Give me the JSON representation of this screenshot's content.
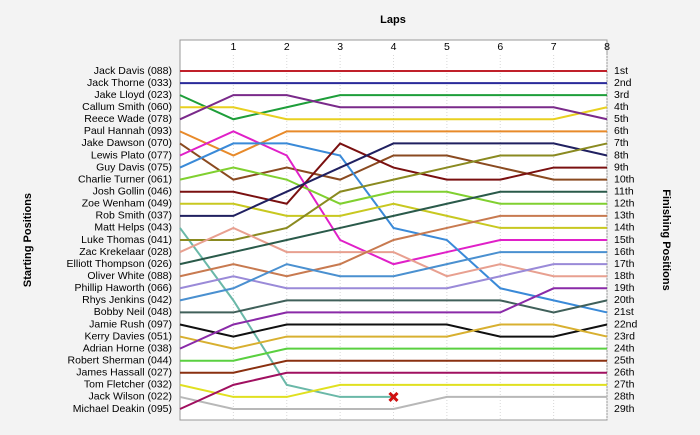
{
  "chart_data": {
    "type": "lap",
    "title": "Laps",
    "y_label": "Starting Positions",
    "y2_label": "Finishing Positions",
    "xlim": [
      0,
      8
    ],
    "xticks": [
      1,
      2,
      3,
      4,
      5,
      6,
      7,
      8
    ],
    "ylim": [
      1,
      29
    ],
    "grid": true,
    "finishing_positions": [
      "1st",
      "2nd",
      "3rd",
      "4th",
      "5th",
      "6th",
      "7th",
      "8th",
      "9th",
      "10th",
      "11th",
      "12th",
      "13th",
      "14th",
      "15th",
      "16th",
      "17th",
      "18th",
      "19th",
      "20th",
      "21st",
      "22nd",
      "23rd",
      "24th",
      "25th",
      "26th",
      "27th",
      "28th",
      "29th"
    ],
    "series": [
      {
        "name": "Jack Davis (088)",
        "color": "#c0202a",
        "values": [
          1,
          1,
          1,
          1,
          1,
          1,
          1,
          1,
          1
        ]
      },
      {
        "name": "Jack Thorne (033)",
        "color": "#2a2a9a",
        "values": [
          2,
          2,
          2,
          2,
          2,
          2,
          2,
          2,
          2
        ]
      },
      {
        "name": "Jake Lloyd (023)",
        "color": "#1e9e3a",
        "values": [
          3,
          5,
          4,
          3,
          3,
          3,
          3,
          3,
          3
        ]
      },
      {
        "name": "Callum Smith (060)",
        "color": "#e8d020",
        "values": [
          4,
          4,
          5,
          5,
          5,
          5,
          5,
          5,
          4
        ]
      },
      {
        "name": "Reece Wade (078)",
        "color": "#7a2a8a",
        "values": [
          5,
          3,
          3,
          4,
          4,
          4,
          4,
          4,
          5
        ]
      },
      {
        "name": "Paul Hannah (093)",
        "color": "#e88a2a",
        "values": [
          6,
          8,
          6,
          6,
          6,
          6,
          6,
          6,
          6
        ]
      },
      {
        "name": "Jake Dawson (070)",
        "color": "#8a4a20",
        "values": [
          7,
          10,
          9,
          10,
          8,
          8,
          9,
          10,
          10
        ]
      },
      {
        "name": "Lewis Plato (077)",
        "color": "#e020c8",
        "values": [
          8,
          6,
          8,
          15,
          17,
          16,
          15,
          15,
          15
        ]
      },
      {
        "name": "Guy Davis (075)",
        "color": "#3a8ad8",
        "values": [
          9,
          7,
          7,
          8,
          14,
          15,
          19,
          20,
          21
        ]
      },
      {
        "name": "Charlie Turner (061)",
        "color": "#80d030",
        "values": [
          10,
          9,
          10,
          12,
          11,
          11,
          12,
          12,
          12
        ]
      },
      {
        "name": "Josh Gollin (046)",
        "color": "#7a1010",
        "values": [
          11,
          11,
          12,
          7,
          9,
          10,
          10,
          9,
          9
        ]
      },
      {
        "name": "Zoe Wenham (049)",
        "color": "#c8c820",
        "values": [
          12,
          12,
          13,
          13,
          12,
          13,
          14,
          14,
          14
        ]
      },
      {
        "name": "Rob Smith (037)",
        "color": "#202060",
        "values": [
          13,
          13,
          11,
          9,
          7,
          7,
          7,
          7,
          8
        ]
      },
      {
        "name": "Matt Helps (043)",
        "color": "#6ab8a8",
        "values": [
          14,
          20,
          27,
          28,
          28,
          null,
          null,
          null,
          null
        ]
      },
      {
        "name": "Luke Thomas (041)",
        "color": "#8a8a20",
        "values": [
          15,
          15,
          14,
          11,
          10,
          9,
          8,
          8,
          7
        ]
      },
      {
        "name": "Zac Krekelaar (028)",
        "color": "#e8a090",
        "values": [
          16,
          14,
          16,
          16,
          16,
          18,
          17,
          18,
          18
        ]
      },
      {
        "name": "Elliott Thompson (026)",
        "color": "#2a5a4a",
        "values": [
          17,
          16,
          15,
          14,
          13,
          12,
          11,
          11,
          11
        ]
      },
      {
        "name": "Oliver White (088)",
        "color": "#c87a50",
        "values": [
          18,
          17,
          18,
          17,
          15,
          14,
          13,
          13,
          13
        ]
      },
      {
        "name": "Phillip Haworth (066)",
        "color": "#9a8ad8",
        "values": [
          19,
          18,
          19,
          19,
          19,
          19,
          18,
          17,
          17
        ]
      },
      {
        "name": "Rhys Jenkins (042)",
        "color": "#4a90d0",
        "values": [
          20,
          19,
          17,
          18,
          18,
          17,
          16,
          16,
          16
        ]
      },
      {
        "name": "Bobby Neil (048)",
        "color": "#40605a",
        "values": [
          21,
          21,
          20,
          20,
          20,
          20,
          20,
          21,
          20
        ]
      },
      {
        "name": "Jamie Rush (097)",
        "color": "#101010",
        "values": [
          22,
          23,
          22,
          22,
          22,
          22,
          23,
          23,
          22
        ]
      },
      {
        "name": "Kerry Davies (051)",
        "color": "#d8b030",
        "values": [
          23,
          24,
          23,
          23,
          23,
          23,
          22,
          22,
          23
        ]
      },
      {
        "name": "Adrian Horne (038)",
        "color": "#8a2aa8",
        "values": [
          24,
          22,
          21,
          21,
          21,
          21,
          21,
          19,
          19
        ]
      },
      {
        "name": "Robert Sherman (044)",
        "color": "#5ad040",
        "values": [
          25,
          25,
          24,
          24,
          24,
          24,
          24,
          24,
          24
        ]
      },
      {
        "name": "James Hassall (027)",
        "color": "#8a3010",
        "values": [
          26,
          26,
          25,
          25,
          25,
          25,
          25,
          25,
          25
        ]
      },
      {
        "name": "Tom Fletcher (032)",
        "color": "#e0e020",
        "values": [
          27,
          28,
          28,
          27,
          27,
          27,
          27,
          27,
          27
        ]
      },
      {
        "name": "Jack Wilson (022)",
        "color": "#b8b8b8",
        "values": [
          28,
          29,
          29,
          29,
          29,
          28,
          28,
          28,
          28
        ]
      },
      {
        "name": "Michael Deakin (095)",
        "color": "#a01060",
        "values": [
          29,
          27,
          26,
          26,
          26,
          26,
          26,
          26,
          26
        ]
      }
    ]
  }
}
